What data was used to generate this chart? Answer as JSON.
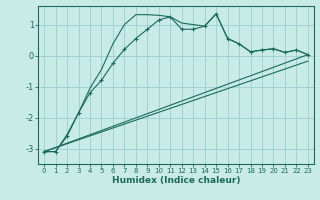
{
  "xlabel": "Humidex (Indice chaleur)",
  "background_color": "#c8ebe8",
  "grid_color": "#9ecece",
  "line_color": "#1a6b5a",
  "xlim": [
    -0.5,
    23.5
  ],
  "ylim": [
    -3.5,
    1.6
  ],
  "yticks": [
    -3,
    -2,
    -1,
    0,
    1
  ],
  "xticks": [
    0,
    1,
    2,
    3,
    4,
    5,
    6,
    7,
    8,
    9,
    10,
    11,
    12,
    13,
    14,
    15,
    16,
    17,
    18,
    19,
    20,
    21,
    22,
    23
  ],
  "curve1_x": [
    0,
    1,
    2,
    3,
    4,
    5,
    6,
    7,
    8,
    9,
    10,
    11,
    12,
    13,
    14,
    15,
    16,
    17,
    18,
    19,
    20,
    21,
    22,
    23
  ],
  "curve1_y": [
    -3.1,
    -3.1,
    -2.6,
    -1.85,
    -1.2,
    -0.8,
    -0.25,
    0.2,
    0.55,
    0.85,
    1.15,
    1.25,
    0.85,
    0.85,
    0.95,
    1.35,
    0.55,
    0.38,
    0.12,
    0.18,
    0.22,
    0.1,
    0.18,
    0.03
  ],
  "curve2_x": [
    0,
    1,
    2,
    3,
    4,
    5,
    6,
    7,
    8,
    9,
    10,
    11,
    12,
    14,
    15,
    16,
    17,
    18,
    19,
    20,
    21,
    22,
    23
  ],
  "curve2_y": [
    -3.1,
    -3.1,
    -2.55,
    -1.85,
    -1.05,
    -0.45,
    0.38,
    1.0,
    1.32,
    1.32,
    1.3,
    1.25,
    1.05,
    0.95,
    1.35,
    0.55,
    0.38,
    0.12,
    0.18,
    0.22,
    0.1,
    0.18,
    0.03
  ],
  "line1_x": [
    0,
    23
  ],
  "line1_y": [
    -3.1,
    0.03
  ],
  "line2_x": [
    0,
    23
  ],
  "line2_y": [
    -3.1,
    -0.18
  ]
}
